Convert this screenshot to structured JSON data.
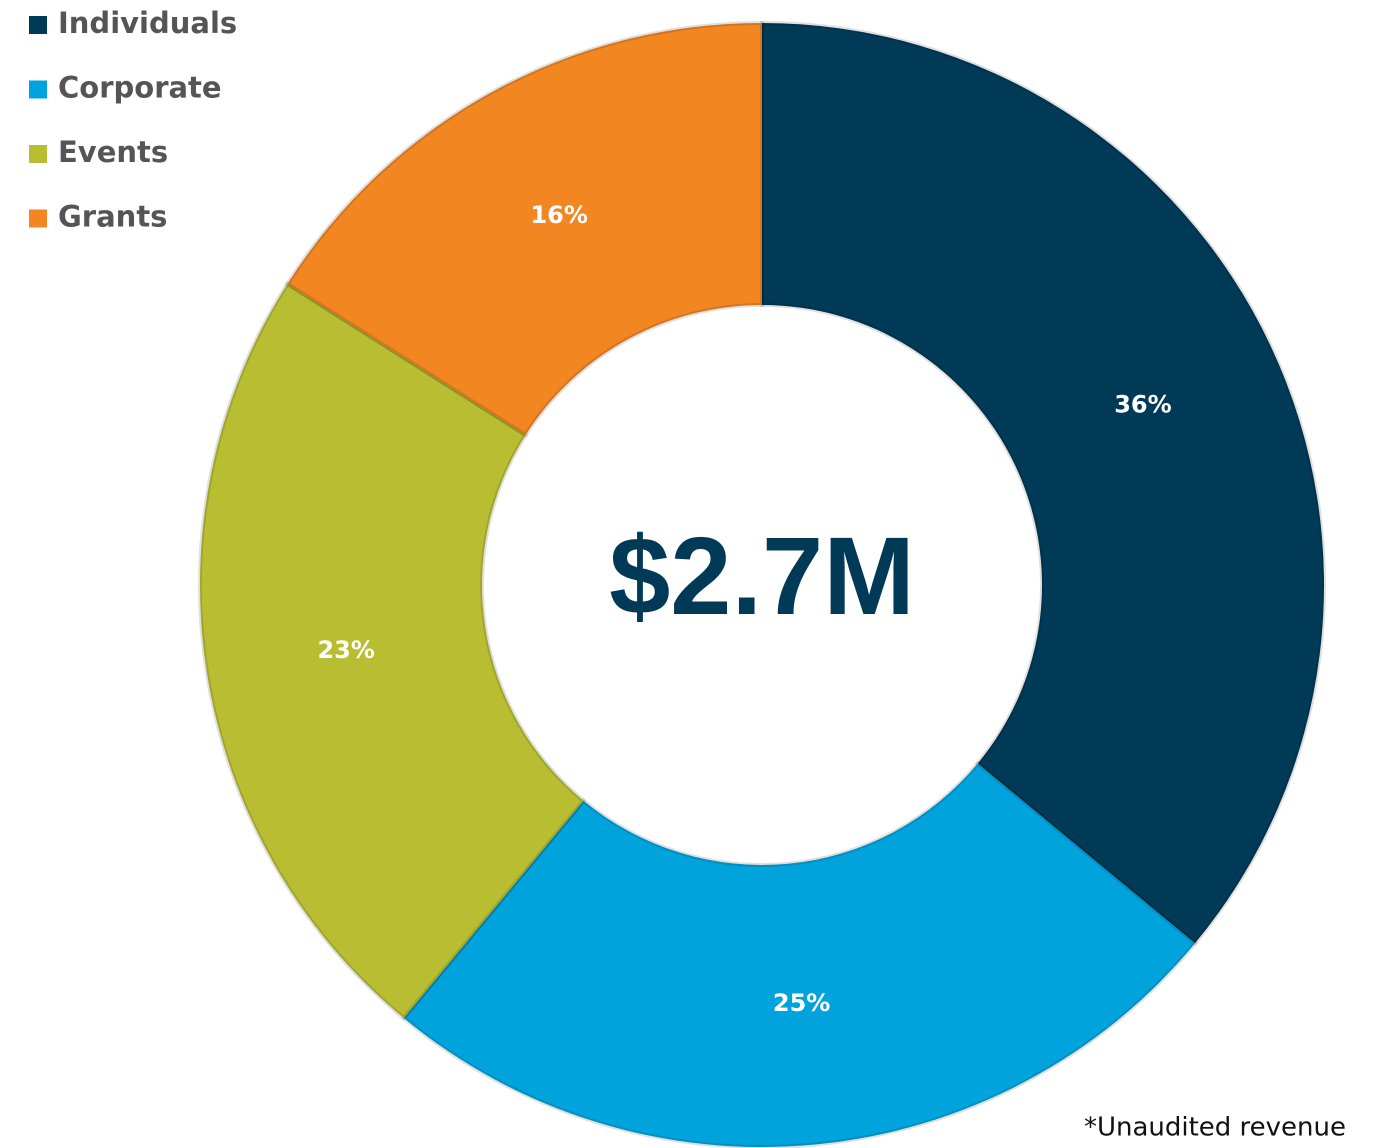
{
  "chart_data": {
    "type": "donut",
    "categories": [
      "Individuals",
      "Corporate",
      "Events",
      "Grants"
    ],
    "values": [
      36,
      25,
      23,
      16
    ],
    "value_labels": [
      "36%",
      "25%",
      "23%",
      "16%"
    ],
    "colors": [
      "#003a57",
      "#00a3dc",
      "#b8bd32",
      "#f28621"
    ],
    "center_text": "$2.7M",
    "footnote": "*Unaudited revenue",
    "legend": "top-left"
  }
}
